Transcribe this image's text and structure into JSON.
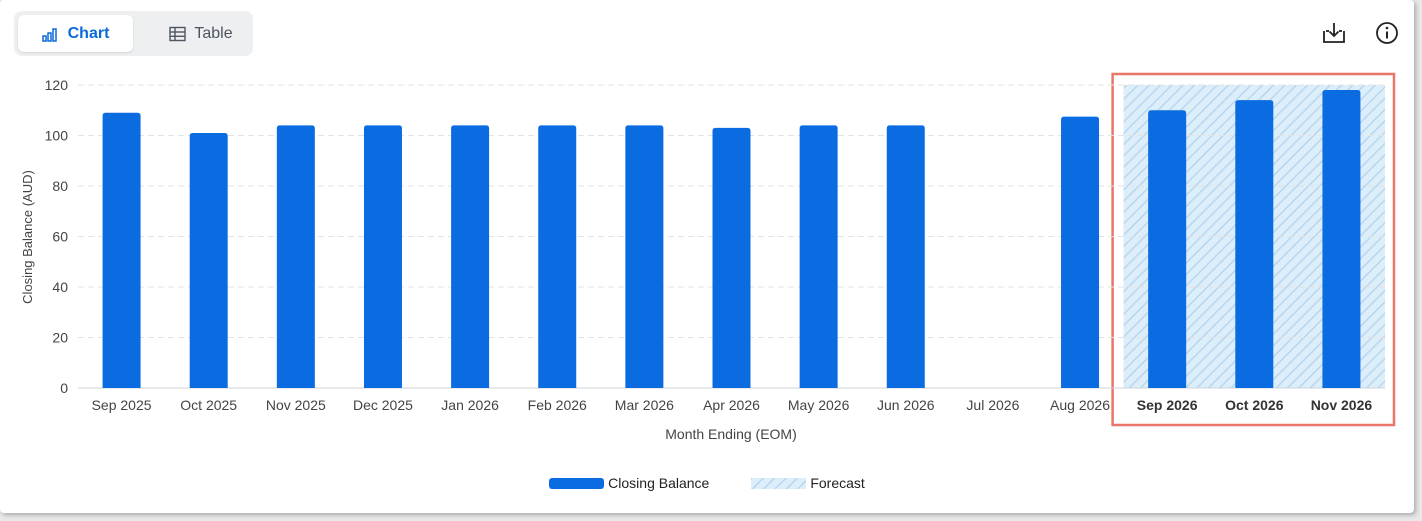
{
  "toolbar": {
    "chart_label": "Chart",
    "table_label": "Table",
    "icons": [
      "bar-chart-icon",
      "table-icon",
      "download-icon",
      "info-icon"
    ]
  },
  "colors": {
    "bar": "#0a6ce0",
    "forecast_fill": "#dceefa",
    "forecast_stripe": "#b8d6ee",
    "highlight_border": "#e8776a",
    "grid": "#e3e3e3"
  },
  "legend": {
    "items": [
      "Closing Balance",
      "Forecast"
    ]
  },
  "chart_data": {
    "type": "bar",
    "categories": [
      "Sep 2025",
      "Oct 2025",
      "Nov 2025",
      "Dec 2025",
      "Jan 2026",
      "Feb 2026",
      "Mar 2026",
      "Apr 2026",
      "May 2026",
      "Jun 2026",
      "Jul 2026",
      "Aug 2026",
      "Sep 2026",
      "Oct 2026",
      "Nov 2026"
    ],
    "series": [
      {
        "name": "Closing Balance",
        "values": [
          109,
          101,
          104,
          104,
          104,
          104,
          104,
          103,
          104,
          104,
          null,
          107.5,
          110,
          114,
          118
        ]
      }
    ],
    "forecast_categories": [
      "Sep 2026",
      "Oct 2026",
      "Nov 2026"
    ],
    "xlabel": "Month Ending (EOM)",
    "ylabel": "Closing Balance (AUD)",
    "ylim": [
      0,
      120
    ],
    "yticks": [
      0,
      20,
      40,
      60,
      80,
      100,
      120
    ],
    "grid": true,
    "legend_position": "bottom"
  }
}
